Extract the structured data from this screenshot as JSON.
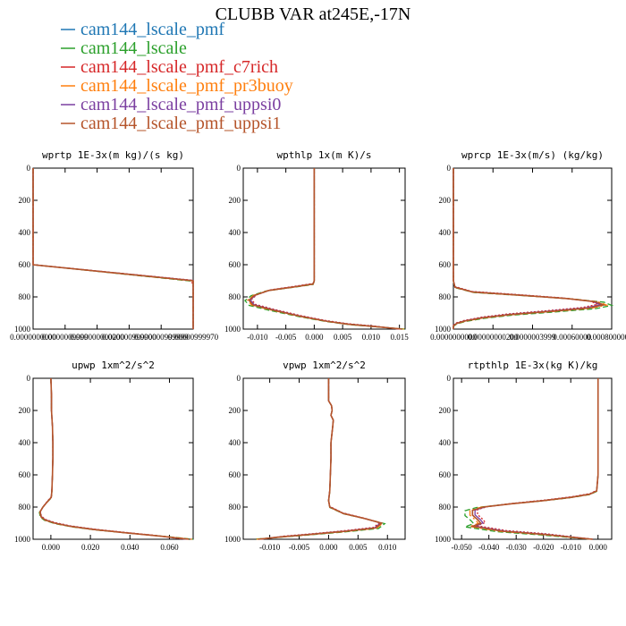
{
  "figure": {
    "title": "CLUBB VAR at245E,-17N"
  },
  "chart_data": {
    "type": "line",
    "legend_placement": "top-left",
    "series": [
      {
        "name": "cam144_lscale_pmf",
        "color": "#1f77b4",
        "dash": "solid"
      },
      {
        "name": "cam144_lscale",
        "color": "#2ca02c",
        "dash": "dashed"
      },
      {
        "name": "cam144_lscale_pmf_c7rich",
        "color": "#d62728",
        "dash": "dotted"
      },
      {
        "name": "cam144_lscale_pmf_pr3buoy",
        "color": "#ff7f0e",
        "dash": "dashdot"
      },
      {
        "name": "cam144_lscale_pmf_uppsi0",
        "color": "#7b3fa0",
        "dash": "solid"
      },
      {
        "name": "cam144_lscale_pmf_uppsi1",
        "color": "#b5542a",
        "dash": "solid"
      }
    ],
    "panels": [
      {
        "title": "wprtp  1E-3x(m kg)/(s kg)",
        "xlim": [
          0,
          9.7e-13
        ],
        "ylim": [
          1000,
          0
        ],
        "yticks": [
          "0",
          "200",
          "400",
          "600",
          "800",
          "1000"
        ],
        "xtick_labels": [
          "0.0000000000",
          "0.0000009999",
          "0.000000000200",
          "0.000000999900",
          "0.000000999999",
          "0.00000999970"
        ],
        "profile": {
          "p": [
            0,
            100,
            200,
            300,
            400,
            500,
            600,
            700,
            740,
            760,
            780,
            800,
            840,
            880,
            920,
            950,
            970,
            985,
            1000
          ],
          "base": [
            0,
            0,
            0,
            0,
            0,
            0,
            0,
            1e-12,
            6e-12,
            4e-11,
            1e-10,
            1.9e-10,
            3.8e-10,
            5.8e-10,
            7.8e-10,
            9e-10,
            9.5e-10,
            9.6e-10,
            9.6e-10
          ]
        }
      },
      {
        "title": "wpthlp  1x(m K)/s",
        "xlim": [
          -0.0125,
          0.016
        ],
        "ylim": [
          1000,
          0
        ],
        "yticks": [
          "0",
          "200",
          "400",
          "600",
          "800",
          "1000"
        ],
        "xtick_labels": [
          "-0.010",
          "-0.005",
          "0.000",
          "0.005",
          "0.010",
          "0.015"
        ],
        "xticks": [
          -0.01,
          -0.005,
          0.0,
          0.005,
          0.01,
          0.015
        ],
        "profile": {
          "p": [
            0,
            200,
            400,
            600,
            700,
            720,
            735,
            760,
            790,
            820,
            850,
            880,
            920,
            950,
            970,
            985,
            1000
          ],
          "base": [
            0,
            0,
            0,
            0,
            0,
            -0.0002,
            -0.003,
            -0.008,
            -0.0105,
            -0.0115,
            -0.0108,
            -0.0075,
            -0.0025,
            0.002,
            0.006,
            0.011,
            0.0155
          ]
        }
      },
      {
        "title": "wprcp  1E-3x(m/s) (kg/kg)",
        "xlim": [
          0,
          9.8e-12
        ],
        "ylim": [
          1000,
          0
        ],
        "yticks": [
          "0",
          "200",
          "400",
          "600",
          "800",
          "1000"
        ],
        "xtick_labels": [
          "0.0000000000",
          "0.00000000200",
          "0.0000003999",
          "0.00060000",
          "0.00080000004"
        ],
        "profile": {
          "p": [
            0,
            200,
            400,
            600,
            700,
            740,
            770,
            790,
            810,
            830,
            850,
            870,
            890,
            910,
            930,
            950,
            965,
            980,
            1000
          ],
          "base": [
            0,
            0,
            0,
            0,
            0,
            1e-13,
            1.2e-12,
            4.2e-12,
            7e-12,
            8.8e-12,
            9.3e-12,
            8.3e-12,
            6e-12,
            3.5e-12,
            1.8e-12,
            7e-13,
            2e-13,
            0,
            0
          ]
        }
      },
      {
        "title": "upwp  1xm^2/s^2",
        "xlim": [
          -0.009,
          0.072
        ],
        "ylim": [
          1000,
          0
        ],
        "yticks": [
          "0",
          "200",
          "400",
          "600",
          "800",
          "1000"
        ],
        "xtick_labels": [
          "0.000",
          "0.020",
          "0.040",
          "0.060"
        ],
        "xticks": [
          0.0,
          0.02,
          0.04,
          0.06
        ],
        "profile": {
          "p": [
            0,
            100,
            200,
            300,
            400,
            500,
            600,
            700,
            740,
            770,
            800,
            830,
            860,
            880,
            900,
            920,
            940,
            960,
            980,
            1000
          ],
          "base": [
            0,
            0.0003,
            0.0003,
            0.0008,
            0.001,
            0.001,
            0.0008,
            0.0005,
            0.0002,
            -0.002,
            -0.004,
            -0.0055,
            -0.005,
            -0.003,
            0.002,
            0.01,
            0.022,
            0.038,
            0.055,
            0.07
          ]
        }
      },
      {
        "title": "vpwp  1xm^2/s^2",
        "xlim": [
          -0.0145,
          0.013
        ],
        "ylim": [
          1000,
          0
        ],
        "yticks": [
          "0",
          "200",
          "400",
          "600",
          "800",
          "1000"
        ],
        "xtick_labels": [
          "-0.010",
          "-0.005",
          "0.000",
          "0.005",
          "0.010"
        ],
        "xticks": [
          -0.01,
          -0.005,
          0.0,
          0.005,
          0.01
        ],
        "profile": {
          "p": [
            0,
            100,
            140,
            170,
            200,
            230,
            260,
            300,
            400,
            500,
            600,
            700,
            760,
            800,
            840,
            870,
            900,
            930,
            950,
            970,
            985,
            1000
          ],
          "base": [
            0,
            0,
            0,
            0.0005,
            0.0006,
            0.0004,
            0.0008,
            0.0007,
            0.0004,
            0.0004,
            0.0003,
            0.0002,
            0,
            0.0002,
            0.0025,
            0.006,
            0.009,
            0.008,
            0.003,
            -0.003,
            -0.008,
            -0.012
          ]
        }
      },
      {
        "title": "rtpthlp  1E-3x(kg K)/kg",
        "xlim": [
          -0.053,
          0.005
        ],
        "ylim": [
          1000,
          0
        ],
        "yticks": [
          "0",
          "200",
          "400",
          "600",
          "800",
          "1000"
        ],
        "xtick_labels": [
          "-0.050",
          "-0.040",
          "-0.030",
          "-0.020",
          "-0.010",
          "0.000"
        ],
        "xticks": [
          -0.05,
          -0.04,
          -0.03,
          -0.02,
          -0.01,
          0.0
        ],
        "profile": {
          "p": [
            0,
            200,
            400,
            600,
            700,
            720,
            740,
            760,
            780,
            800,
            820,
            850,
            880,
            900,
            920,
            950,
            970,
            1000
          ],
          "base": [
            0,
            0,
            0,
            0,
            -0.0005,
            -0.003,
            -0.01,
            -0.02,
            -0.032,
            -0.042,
            -0.046,
            -0.046,
            -0.044,
            -0.043,
            -0.046,
            -0.035,
            -0.02,
            -0.002
          ]
        }
      }
    ]
  }
}
